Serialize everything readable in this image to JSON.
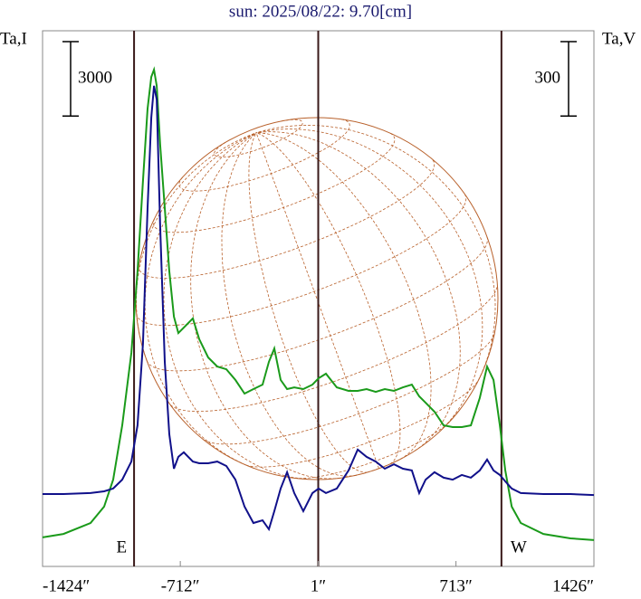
{
  "chart_data": {
    "type": "line",
    "title": "sun: 2025/08/22: 9.70[cm]",
    "y_label": "Ta,I",
    "y2_label": "Ta,V",
    "y_scale_bar": 3000,
    "y2_scale_bar": 300,
    "vlines": [
      -951,
      1,
      948
    ],
    "annotations": [
      {
        "text": "E",
        "x": -951
      },
      {
        "text": "W",
        "x": 948
      }
    ],
    "xlim": [
      -1424,
      1426
    ],
    "xticks": [
      {
        "value": -1424,
        "label": "-1424″"
      },
      {
        "value": -712,
        "label": "-712″"
      },
      {
        "value": 1,
        "label": "1″"
      },
      {
        "value": 713,
        "label": "713″"
      },
      {
        "value": 1426,
        "label": "1426″"
      }
    ],
    "ylim": [
      0,
      21600
    ],
    "y2lim": [
      -292,
      1868
    ],
    "x": [
      -1424,
      -1316,
      -1176,
      -1106,
      -1059,
      -1012,
      -965,
      -933,
      -905,
      -881,
      -862,
      -848,
      -834,
      -816,
      -792,
      -769,
      -745,
      -722,
      -694,
      -647,
      -614,
      -568,
      -521,
      -474,
      -427,
      -380,
      -334,
      -287,
      -254,
      -226,
      -193,
      -160,
      -123,
      -76,
      -29,
      3,
      41,
      97,
      158,
      205,
      251,
      298,
      345,
      392,
      439,
      485,
      523,
      556,
      602,
      649,
      696,
      743,
      790,
      836,
      874,
      907,
      940,
      968,
      1001,
      1048,
      1165,
      1305,
      1426
    ],
    "series": [
      {
        "name": "I",
        "color": "#1a9a1a",
        "values": [
          1170,
          1310,
          1750,
          2410,
          3500,
          5690,
          8610,
          11900,
          15540,
          18460,
          19740,
          20030,
          19380,
          17000,
          14450,
          11900,
          10070,
          9410,
          9630,
          10000,
          9160,
          8430,
          8060,
          7950,
          7520,
          6970,
          7150,
          7330,
          8250,
          8790,
          7520,
          7150,
          7220,
          7150,
          7330,
          7590,
          7770,
          7220,
          7080,
          7080,
          7150,
          7040,
          7150,
          7080,
          7220,
          7330,
          6860,
          6600,
          6240,
          5690,
          5620,
          5620,
          5690,
          6790,
          8060,
          7520,
          5690,
          3870,
          2410,
          1750,
          1310,
          1130,
          1060
        ]
      },
      {
        "name": "V",
        "color": "#10108a",
        "axis": "y2",
        "values": [
          0,
          0,
          4,
          11,
          22,
          58,
          131,
          277,
          606,
          1153,
          1518,
          1646,
          1591,
          1080,
          533,
          241,
          102,
          150,
          168,
          131,
          124,
          124,
          131,
          113,
          58,
          -51,
          -117,
          -106,
          -142,
          -69,
          22,
          88,
          4,
          -69,
          4,
          22,
          4,
          22,
          95,
          179,
          150,
          131,
          102,
          120,
          102,
          95,
          4,
          58,
          88,
          66,
          58,
          77,
          66,
          95,
          139,
          95,
          77,
          51,
          22,
          4,
          0,
          0,
          -4
        ]
      }
    ]
  }
}
